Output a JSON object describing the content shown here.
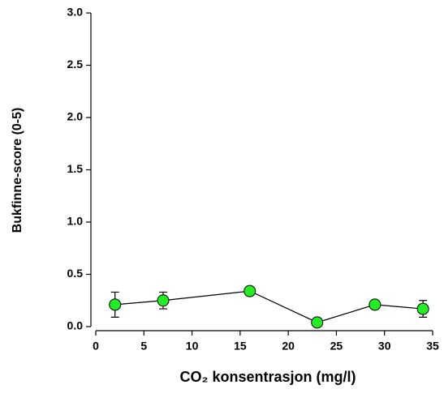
{
  "chart_data": {
    "type": "line",
    "xlabel": "CO₂ konsentrasjon (mg/l)",
    "ylabel": "Bukfinne-score (0-5)",
    "x": [
      2,
      7,
      16,
      23,
      29,
      34
    ],
    "values": [
      0.21,
      0.25,
      0.34,
      0.04,
      0.21,
      0.17
    ],
    "errors": [
      0.12,
      0.08,
      null,
      null,
      null,
      0.08
    ],
    "color": "#22ee22",
    "xlim": [
      0,
      35
    ],
    "xticks": [
      0,
      5,
      10,
      15,
      20,
      25,
      30,
      35
    ],
    "ylim": [
      0,
      3
    ],
    "yticks": [
      {
        "value": 0,
        "label": "0.0"
      },
      0.5,
      {
        "value": 1,
        "label": "1.0"
      },
      1.5,
      {
        "value": 2,
        "label": "2.0"
      },
      2.5,
      {
        "value": 3,
        "label": "3.0"
      }
    ]
  }
}
